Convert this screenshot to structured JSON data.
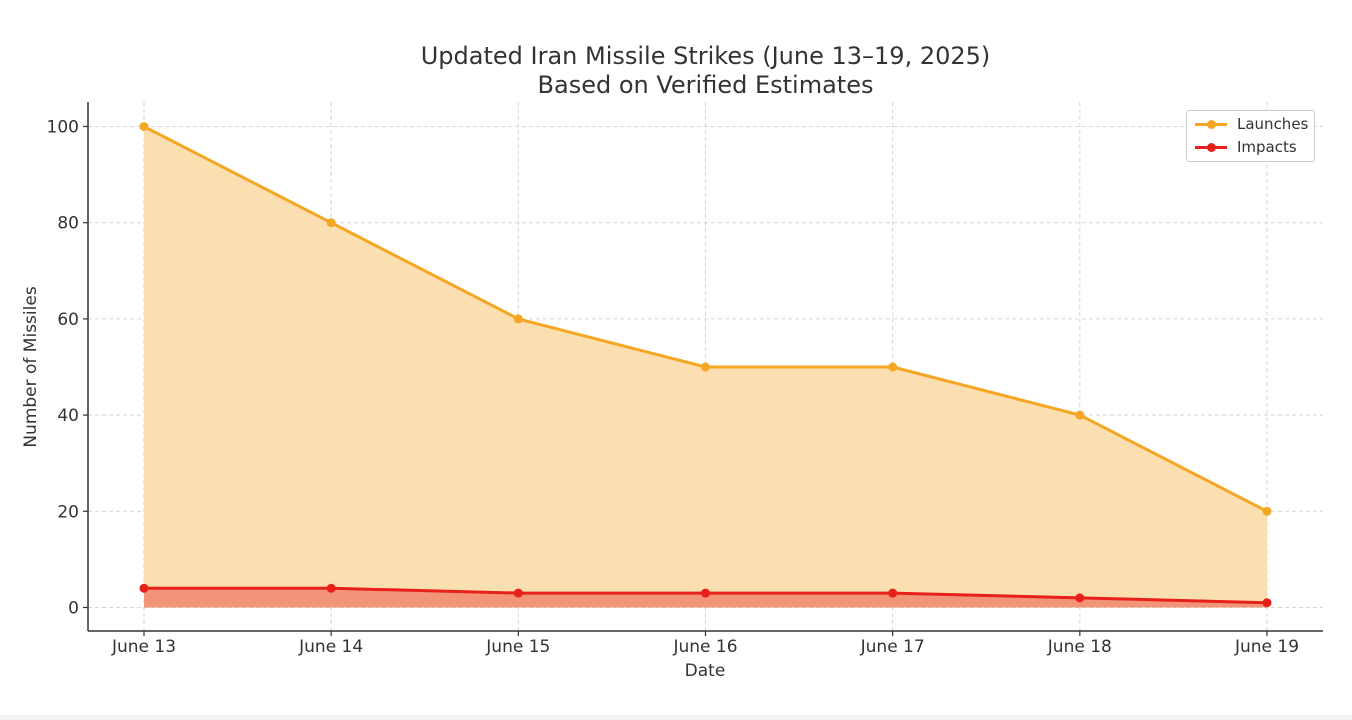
{
  "chart_data": {
    "type": "area",
    "title": "Updated Iran Missile Strikes (June 13–19, 2025)",
    "subtitle": "Based on Verified Estimates",
    "xlabel": "Date",
    "ylabel": "Number of Missiles",
    "categories": [
      "June 13",
      "June 14",
      "June 15",
      "June 16",
      "June 17",
      "June 18",
      "June 19"
    ],
    "yticks": [
      0,
      20,
      40,
      60,
      80,
      100
    ],
    "ylim": [
      -5,
      105
    ],
    "grid": true,
    "legend_position": "top-right",
    "series": [
      {
        "name": "Launches",
        "values": [
          100,
          80,
          60,
          50,
          50,
          40,
          20
        ],
        "color": "#f5a623",
        "fill": "#fbdfb0"
      },
      {
        "name": "Impacts",
        "values": [
          4,
          4,
          3,
          3,
          3,
          2,
          1
        ],
        "color": "#e8201a",
        "fill": "#f29478"
      }
    ]
  }
}
